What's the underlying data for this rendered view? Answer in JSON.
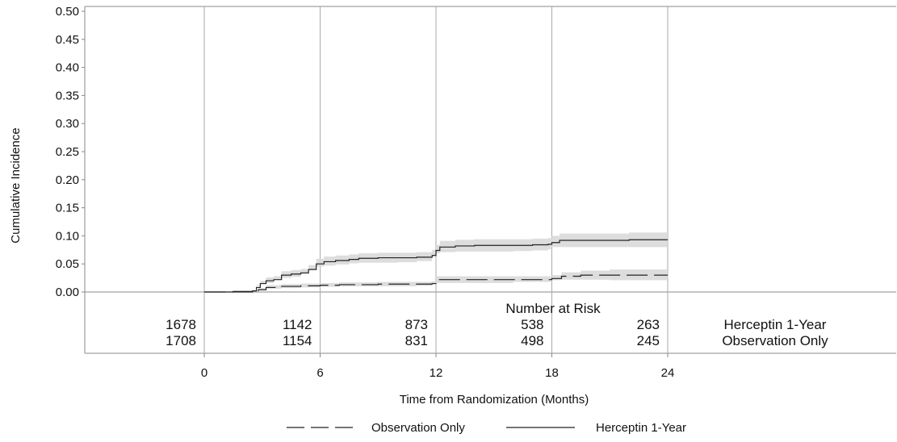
{
  "chart_data": {
    "type": "line",
    "ylabel": "Cumulative Incidence",
    "xlabel": "Time from Randomization (Months)",
    "xticks": [
      0,
      6,
      12,
      18,
      24
    ],
    "xlim": [
      0,
      24
    ],
    "yticks": [
      "0.00",
      "0.05",
      "0.10",
      "0.15",
      "0.20",
      "0.25",
      "0.30",
      "0.35",
      "0.40",
      "0.45",
      "0.50"
    ],
    "ylim": [
      0,
      0.5
    ],
    "grid": "vertical",
    "series": [
      {
        "name": "Herceptin 1-Year",
        "style": "solid",
        "color": "#222222",
        "band_color": "#d9d9d9",
        "x": [
          0,
          1.5,
          2.5,
          2.7,
          2.9,
          3.2,
          3.6,
          4.0,
          4.5,
          5.0,
          5.4,
          5.8,
          6.2,
          6.8,
          7.5,
          8.0,
          9.0,
          10.0,
          11.0,
          11.8,
          12.0,
          12.2,
          13.0,
          14.0,
          15.0,
          16.0,
          17.0,
          17.8,
          18.0,
          18.4,
          19.0,
          20.0,
          21.0,
          22.0,
          23.0,
          24.0
        ],
        "y": [
          0,
          0.001,
          0.002,
          0.008,
          0.015,
          0.02,
          0.022,
          0.03,
          0.032,
          0.034,
          0.04,
          0.05,
          0.054,
          0.056,
          0.058,
          0.06,
          0.061,
          0.061,
          0.062,
          0.065,
          0.074,
          0.08,
          0.082,
          0.083,
          0.083,
          0.083,
          0.084,
          0.085,
          0.088,
          0.092,
          0.092,
          0.092,
          0.092,
          0.093,
          0.093,
          0.093
        ],
        "lower": [
          0,
          0.0,
          0.0,
          0.004,
          0.01,
          0.014,
          0.016,
          0.023,
          0.025,
          0.027,
          0.032,
          0.041,
          0.045,
          0.047,
          0.049,
          0.051,
          0.052,
          0.052,
          0.053,
          0.055,
          0.064,
          0.069,
          0.071,
          0.072,
          0.072,
          0.072,
          0.073,
          0.074,
          0.076,
          0.08,
          0.08,
          0.08,
          0.08,
          0.08,
          0.08,
          0.08
        ],
        "upper": [
          0,
          0.002,
          0.004,
          0.012,
          0.02,
          0.026,
          0.028,
          0.037,
          0.039,
          0.041,
          0.048,
          0.059,
          0.063,
          0.065,
          0.067,
          0.069,
          0.07,
          0.07,
          0.071,
          0.075,
          0.084,
          0.091,
          0.093,
          0.094,
          0.094,
          0.094,
          0.095,
          0.096,
          0.1,
          0.104,
          0.104,
          0.104,
          0.104,
          0.106,
          0.106,
          0.11
        ]
      },
      {
        "name": "Observation Only",
        "style": "dashed",
        "color": "#222222",
        "band_color": "#d9d9d9",
        "x": [
          0,
          1.5,
          2.5,
          2.8,
          3.2,
          4.0,
          5.0,
          6.0,
          7.0,
          9.0,
          11.0,
          11.8,
          12.0,
          12.5,
          14.0,
          16.0,
          18.0,
          18.5,
          19.5,
          21.0,
          24.0
        ],
        "y": [
          0,
          0.0,
          0.001,
          0.004,
          0.008,
          0.01,
          0.011,
          0.012,
          0.013,
          0.014,
          0.014,
          0.015,
          0.022,
          0.022,
          0.022,
          0.022,
          0.024,
          0.028,
          0.03,
          0.03,
          0.03
        ],
        "lower": [
          0,
          0.0,
          0.0,
          0.001,
          0.004,
          0.006,
          0.007,
          0.008,
          0.009,
          0.01,
          0.01,
          0.011,
          0.016,
          0.016,
          0.016,
          0.016,
          0.018,
          0.021,
          0.022,
          0.022,
          0.021
        ],
        "upper": [
          0,
          0.001,
          0.002,
          0.007,
          0.012,
          0.014,
          0.015,
          0.016,
          0.017,
          0.018,
          0.018,
          0.019,
          0.028,
          0.028,
          0.028,
          0.028,
          0.03,
          0.035,
          0.038,
          0.04,
          0.042
        ]
      }
    ],
    "risk_table": {
      "title": "Number at Risk",
      "rows": [
        {
          "label": "Herceptin 1-Year",
          "values": [
            "1678",
            "1142",
            "873",
            "538",
            "263"
          ]
        },
        {
          "label": "Observation Only",
          "values": [
            "1708",
            "1154",
            "831",
            "498",
            "245"
          ]
        }
      ]
    },
    "legend": {
      "placement": "bottom-center",
      "entries": [
        {
          "label": "Observation Only",
          "style": "dashed"
        },
        {
          "label": "Herceptin 1-Year",
          "style": "solid"
        }
      ]
    }
  }
}
